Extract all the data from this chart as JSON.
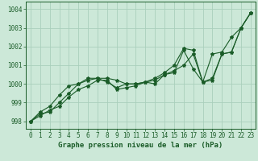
{
  "title": "Graphe pression niveau de la mer (hPa)",
  "background_color": "#cce8d8",
  "grid_color": "#aacfbc",
  "line_color": "#1a5c28",
  "xlim": [
    -0.5,
    23.5
  ],
  "ylim": [
    997.6,
    1004.4
  ],
  "yticks": [
    998,
    999,
    1000,
    1001,
    1002,
    1003,
    1004
  ],
  "xticks": [
    0,
    1,
    2,
    3,
    4,
    5,
    6,
    7,
    8,
    9,
    10,
    11,
    12,
    13,
    14,
    15,
    16,
    17,
    18,
    19,
    20,
    21,
    22,
    23
  ],
  "series": [
    [
      998.0,
      998.4,
      998.5,
      999.0,
      999.5,
      1000.0,
      1000.3,
      1000.3,
      1000.1,
      999.8,
      1000.0,
      1000.0,
      1000.1,
      1000.2,
      1000.5,
      1000.7,
      1001.0,
      1001.6,
      1000.1,
      1000.2,
      1001.6,
      1001.7,
      1003.0,
      1003.8
    ],
    [
      998.0,
      998.5,
      998.8,
      999.4,
      999.9,
      1000.0,
      1000.2,
      1000.3,
      1000.3,
      1000.2,
      1000.0,
      1000.0,
      1000.1,
      1000.3,
      1000.6,
      1001.0,
      1001.9,
      1001.8,
      1000.1,
      1001.6,
      1001.7,
      1002.5,
      1003.0,
      1003.8
    ],
    [
      998.0,
      998.3,
      998.6,
      998.8,
      999.3,
      999.7,
      999.9,
      1000.2,
      1000.2,
      999.7,
      999.8,
      999.9,
      1000.1,
      1000.0,
      1000.5,
      1000.6,
      1001.8,
      1000.8,
      1000.1,
      1000.3,
      1001.6,
      1001.7,
      1003.0,
      1003.8
    ]
  ],
  "marker": "*",
  "markersize": 3,
  "linewidth": 0.8,
  "tick_labelsize": 5.5,
  "xlabel_fontsize": 6.5
}
